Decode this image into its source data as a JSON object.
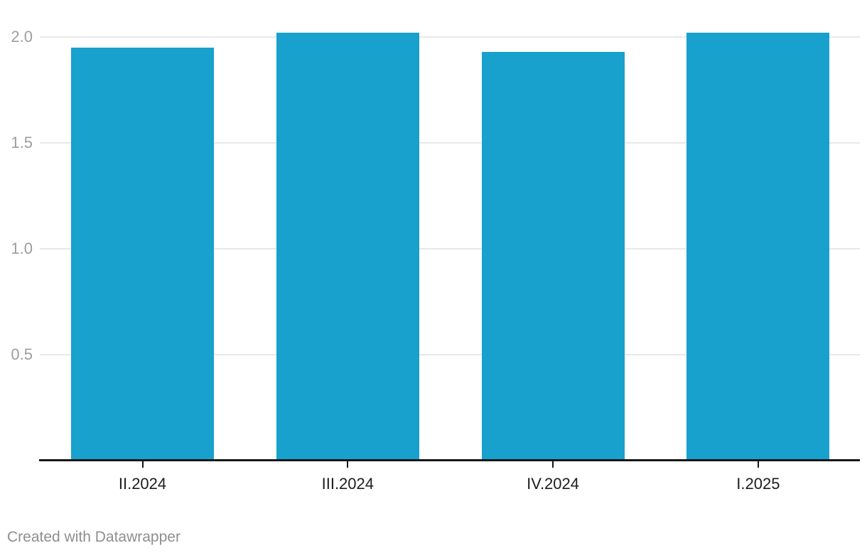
{
  "chart_data": {
    "type": "bar",
    "categories": [
      "II.2024",
      "III.2024",
      "IV.2024",
      "I.2025"
    ],
    "values": [
      1.95,
      2.02,
      1.93,
      2.02
    ],
    "title": "",
    "xlabel": "",
    "ylabel": "",
    "ylim": [
      0,
      2.05
    ],
    "yticks": [
      0.5,
      1.0,
      1.5,
      2.0
    ],
    "ytick_labels": [
      "0.5",
      "1.0",
      "1.5",
      "2.0"
    ],
    "grid": true,
    "legend": false,
    "colors": {
      "bar": "#18a1cd",
      "gridline": "#e8e8e8",
      "axis_line": "#161616",
      "ytick_label": "#9d9d9d",
      "xtick_label": "#1d1d1d",
      "footer_text": "#8e8e8e"
    }
  },
  "footer": {
    "attribution": "Created with Datawrapper"
  }
}
